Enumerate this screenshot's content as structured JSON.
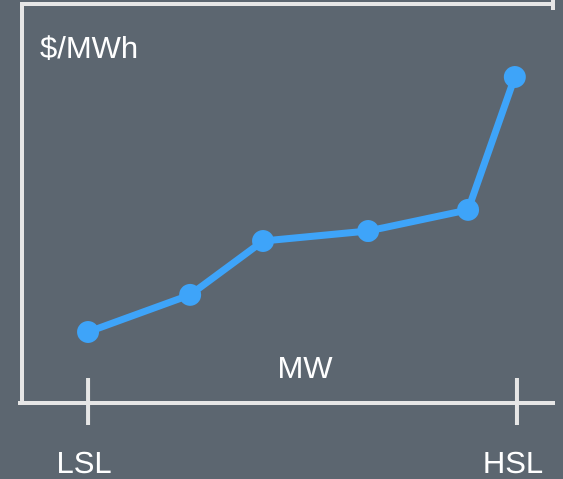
{
  "chart_data": {
    "type": "line",
    "ylabel": "$/MWh",
    "xlabel": "MW",
    "x": [
      0,
      23.8,
      40.8,
      65.3,
      88.6,
      99.5
    ],
    "series": [
      {
        "color": "#3ea4f9",
        "values": [
          17.8,
          27.1,
          40.6,
          43.1,
          48.4,
          81.7
        ]
      }
    ],
    "xlim": [
      -15.4,
      108.4
    ],
    "ylim": [
      0,
      100
    ],
    "xticks": [
      {
        "value": 0,
        "label": "LSL"
      },
      {
        "value": 100,
        "label": "HSL"
      }
    ]
  }
}
